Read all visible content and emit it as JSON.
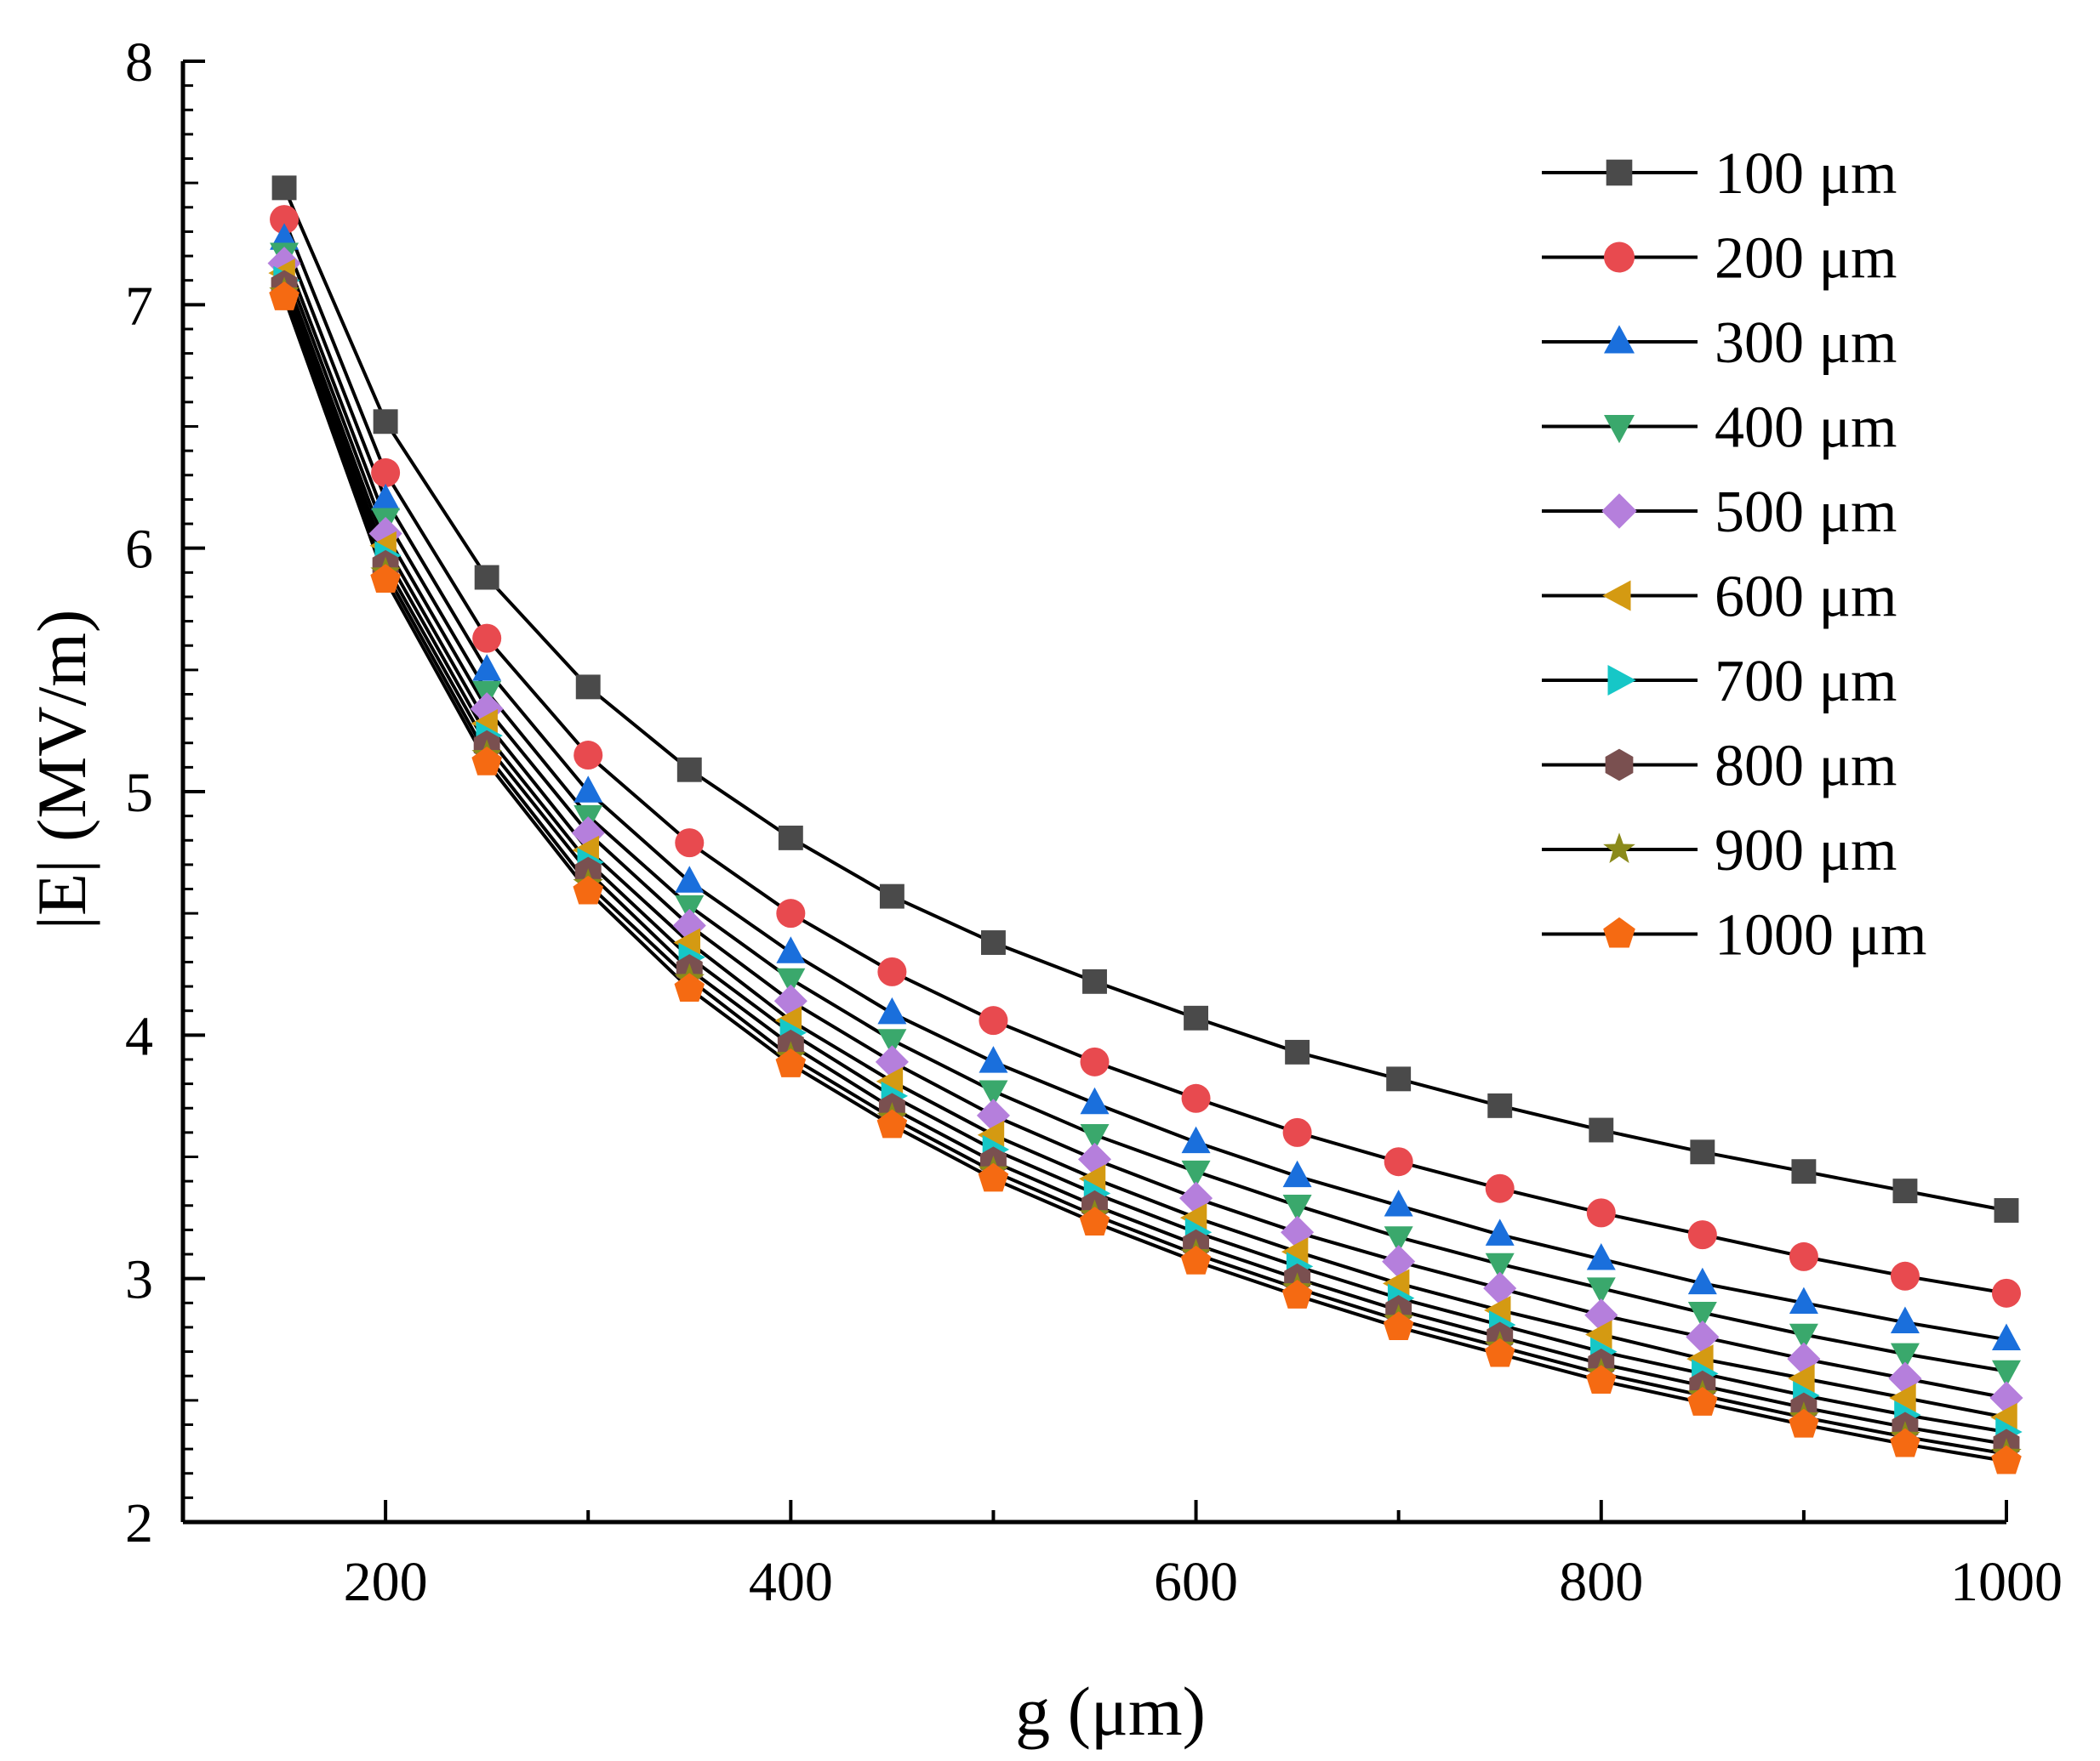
{
  "chart_data": {
    "type": "line",
    "title": "",
    "xlabel": "g (μm)",
    "ylabel": "|E| (MV/m)",
    "xlim": [
      100,
      1000
    ],
    "ylim": [
      2,
      8
    ],
    "xticks": [
      200,
      400,
      600,
      800,
      1000
    ],
    "yticks": [
      2,
      3,
      4,
      5,
      6,
      7,
      8
    ],
    "xtick_labels": [
      "200",
      "400",
      "600",
      "800",
      "1000"
    ],
    "ytick_labels": [
      "2",
      "3",
      "4",
      "5",
      "6",
      "7",
      "8"
    ],
    "grid": false,
    "legend_position": "top-right",
    "x": [
      150,
      200,
      250,
      300,
      350,
      400,
      450,
      500,
      550,
      600,
      650,
      700,
      750,
      800,
      850,
      900,
      950,
      1000
    ],
    "series": [
      {
        "name": "100 μm",
        "marker": "square",
        "color": "#4a4a4a",
        "values": [
          7.48,
          6.52,
          5.88,
          5.43,
          5.09,
          4.81,
          4.57,
          4.38,
          4.22,
          4.07,
          3.93,
          3.82,
          3.71,
          3.61,
          3.52,
          3.44,
          3.36,
          3.28
        ]
      },
      {
        "name": "200 μm",
        "marker": "circle",
        "color": "#e84a4f",
        "values": [
          7.35,
          6.31,
          5.63,
          5.15,
          4.79,
          4.5,
          4.26,
          4.06,
          3.89,
          3.74,
          3.6,
          3.48,
          3.37,
          3.27,
          3.18,
          3.09,
          3.01,
          2.94
        ]
      },
      {
        "name": "300 μm",
        "marker": "triangle-up",
        "color": "#1a6fdc",
        "values": [
          7.27,
          6.2,
          5.5,
          5.0,
          4.63,
          4.34,
          4.09,
          3.89,
          3.72,
          3.56,
          3.42,
          3.3,
          3.18,
          3.08,
          2.98,
          2.9,
          2.82,
          2.75
        ]
      },
      {
        "name": "400 μm",
        "marker": "triangle-down",
        "color": "#3aa86c",
        "values": [
          7.21,
          6.12,
          5.41,
          4.9,
          4.53,
          4.23,
          3.98,
          3.77,
          3.59,
          3.44,
          3.3,
          3.17,
          3.06,
          2.96,
          2.86,
          2.77,
          2.69,
          2.62
        ]
      },
      {
        "name": "500 μm",
        "marker": "diamond",
        "color": "#b57fdc",
        "values": [
          7.17,
          6.06,
          5.34,
          4.83,
          4.45,
          4.14,
          3.89,
          3.67,
          3.49,
          3.33,
          3.19,
          3.07,
          2.96,
          2.85,
          2.76,
          2.67,
          2.59,
          2.51
        ]
      },
      {
        "name": "600 μm",
        "marker": "triangle-left",
        "color": "#d49a12",
        "values": [
          7.13,
          6.01,
          5.28,
          4.76,
          4.38,
          4.06,
          3.81,
          3.59,
          3.41,
          3.25,
          3.11,
          2.98,
          2.87,
          2.77,
          2.67,
          2.59,
          2.51,
          2.43
        ]
      },
      {
        "name": "700 μm",
        "marker": "triangle-right",
        "color": "#16c7c7",
        "values": [
          7.1,
          5.97,
          5.23,
          4.71,
          4.32,
          4.01,
          3.75,
          3.53,
          3.35,
          3.19,
          3.05,
          2.92,
          2.81,
          2.7,
          2.61,
          2.52,
          2.44,
          2.37
        ]
      },
      {
        "name": "800 μm",
        "marker": "hexagon",
        "color": "#7a5050",
        "values": [
          7.08,
          5.93,
          5.19,
          4.67,
          4.27,
          3.96,
          3.7,
          3.48,
          3.3,
          3.14,
          3.0,
          2.87,
          2.76,
          2.65,
          2.56,
          2.47,
          2.39,
          2.32
        ]
      },
      {
        "name": "900 μm",
        "marker": "star",
        "color": "#8a8a1a",
        "values": [
          7.05,
          5.9,
          5.15,
          4.62,
          4.23,
          3.91,
          3.66,
          3.44,
          3.26,
          3.1,
          2.96,
          2.83,
          2.72,
          2.61,
          2.52,
          2.43,
          2.35,
          2.28
        ]
      },
      {
        "name": "1000 μm",
        "marker": "pentagon",
        "color": "#f56a12",
        "values": [
          7.03,
          5.87,
          5.12,
          4.59,
          4.19,
          3.88,
          3.63,
          3.41,
          3.23,
          3.07,
          2.93,
          2.8,
          2.69,
          2.58,
          2.49,
          2.4,
          2.32,
          2.25
        ]
      }
    ]
  }
}
